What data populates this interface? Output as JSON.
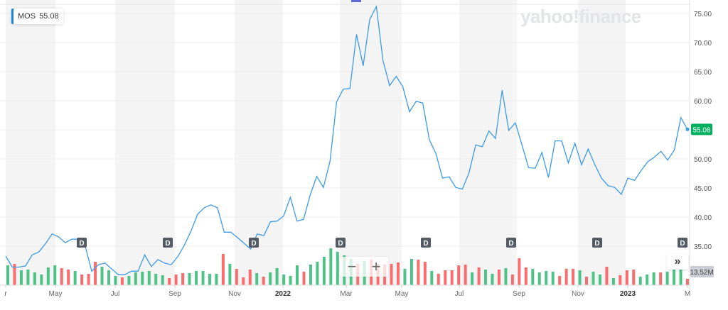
{
  "legend": {
    "symbol": "MOS",
    "price": "55.08",
    "line_color": "#1e88e5"
  },
  "watermark": "yahoo!finance",
  "price_label": {
    "value": "55.08",
    "color": "#00b061"
  },
  "volume_label": {
    "value": "13.52M",
    "color": "#c8ccd4"
  },
  "zoom_controls": {
    "minus": "−",
    "plus": "+"
  },
  "scroll_button": "»",
  "colors": {
    "line": "#3d9ae8",
    "volume_up": "#4fc387",
    "volume_down": "#f96d6f",
    "band": "#f4f4f5",
    "grid": "#ececec",
    "dividend_marker": "#535a63"
  },
  "chart_data": {
    "type": "line",
    "title": "MOS",
    "ticker": "MOS",
    "last_price": 55.08,
    "last_volume": "13.52M",
    "ylabel": "",
    "ylim": [
      32.5,
      76.5
    ],
    "y_ticks": [
      "75.00",
      "70.00",
      "65.00",
      "60.00",
      "55.00",
      "50.00",
      "45.00",
      "40.00",
      "35.00"
    ],
    "x_tick_labels": [
      "r",
      "May",
      "Jul",
      "Sep",
      "Nov",
      "2022",
      "Mar",
      "May",
      "Jul",
      "Sep",
      "Nov",
      "2023",
      "M"
    ],
    "grid": true,
    "dividend_markers": [
      "D",
      "D",
      "D",
      "D",
      "D",
      "D",
      "D",
      "D"
    ],
    "series": [
      {
        "name": "MOS price",
        "values": [
          33.3,
          31.4,
          31.4,
          31.6,
          33.5,
          34.0,
          35.4,
          37.1,
          36.6,
          35.6,
          36.2,
          36.2,
          35.1,
          30.7,
          31.8,
          32.1,
          31.1,
          30.1,
          30.1,
          30.7,
          30.7,
          33.5,
          31.5,
          32.7,
          32.1,
          31.8,
          33.2,
          35.2,
          37.6,
          40.5,
          41.6,
          42.1,
          41.6,
          37.4,
          37.4,
          36.5,
          35.5,
          34.5,
          37.1,
          36.8,
          39.2,
          39.3,
          40.2,
          43.4,
          39.3,
          39.6,
          43.8,
          47.0,
          45.1,
          49.6,
          59.8,
          62.0,
          62.1,
          71.4,
          66.0,
          74.0,
          76.2,
          66.9,
          62.6,
          64.2,
          62.4,
          58.1,
          59.9,
          59.6,
          53.3,
          50.9,
          46.7,
          46.9,
          45.1,
          44.8,
          47.6,
          52.4,
          52.1,
          54.8,
          53.5,
          61.8,
          54.9,
          56.2,
          52.4,
          48.5,
          48.4,
          51.1,
          46.8,
          53.1,
          53.1,
          49.3,
          52.7,
          49.0,
          51.7,
          49.0,
          46.7,
          45.4,
          45.1,
          43.9,
          46.7,
          46.3,
          48.0,
          49.5,
          50.3,
          51.3,
          49.8,
          51.5,
          57.1,
          55.08
        ]
      },
      {
        "name": "Volume (relative bar height px, up=green/down=red)",
        "values": [
          28,
          30,
          21,
          22,
          18,
          15,
          25,
          28,
          24,
          22,
          20,
          15,
          16,
          33,
          26,
          21,
          13,
          11,
          13,
          18,
          19,
          20,
          16,
          14,
          10,
          15,
          17,
          17,
          20,
          20,
          16,
          16,
          44,
          30,
          23,
          11,
          22,
          17,
          12,
          18,
          24,
          15,
          13,
          28,
          19,
          29,
          33,
          40,
          52,
          47,
          42,
          37,
          30,
          34,
          36,
          30,
          29,
          30,
          32,
          23,
          37,
          36,
          33,
          20,
          16,
          21,
          21,
          28,
          29,
          18,
          25,
          22,
          16,
          22,
          24,
          15,
          38,
          25,
          23,
          18,
          20,
          19,
          13,
          23,
          23,
          21,
          12,
          19,
          15,
          26,
          10,
          14,
          21,
          22,
          12,
          15,
          18,
          18,
          19,
          22,
          25,
          9
        ]
      }
    ],
    "volume_directions": [
      "u",
      "d",
      "u",
      "u",
      "u",
      "u",
      "u",
      "u",
      "d",
      "d",
      "u",
      "d",
      "d",
      "d",
      "u",
      "u",
      "u",
      "d",
      "u",
      "u",
      "u",
      "u",
      "u",
      "u",
      "d",
      "d",
      "d",
      "u",
      "u",
      "u",
      "u",
      "u",
      "d",
      "u",
      "d",
      "d",
      "d",
      "u",
      "d",
      "u",
      "u",
      "u",
      "u",
      "u",
      "d",
      "u",
      "u",
      "u",
      "u",
      "u",
      "u",
      "u",
      "d",
      "u",
      "d",
      "d",
      "d",
      "d",
      "d",
      "u",
      "u",
      "d",
      "d",
      "u",
      "d",
      "d",
      "d",
      "d",
      "d",
      "u",
      "d",
      "u",
      "u",
      "d",
      "u",
      "d",
      "d",
      "d",
      "u",
      "u",
      "u",
      "u",
      "d",
      "d",
      "d",
      "u",
      "d",
      "u",
      "u",
      "d",
      "u",
      "d",
      "d",
      "d",
      "u",
      "u",
      "u",
      "d",
      "u",
      "u",
      "u",
      "d"
    ]
  }
}
